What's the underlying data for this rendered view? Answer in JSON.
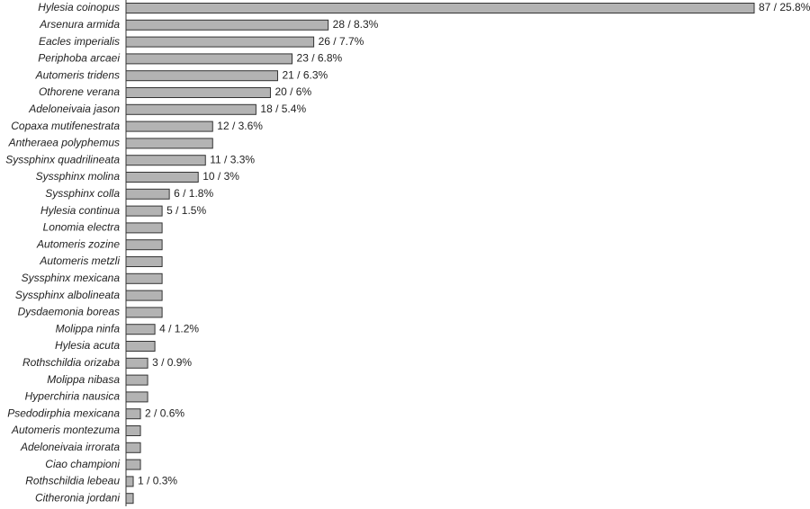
{
  "chart_data": {
    "type": "bar",
    "orientation": "horizontal",
    "color": "#b3b3b3",
    "categories": [
      "Hylesia coinopus",
      "Arsenura armida",
      "Eacles imperialis",
      "Periphoba arcaei",
      "Automeris tridens",
      "Othorene verana",
      "Adeloneivaia jason",
      "Copaxa mutifenestrata",
      "Antheraea polyphemus",
      "Syssphinx quadrilineata",
      "Syssphinx molina",
      "Syssphinx colla",
      "Hylesia continua",
      "Lonomia electra",
      "Automeris zozine",
      "Automeris metzli",
      "Syssphinx mexicana",
      "Syssphinx albolineata",
      "Dysdaemonia boreas",
      "Molippa ninfa",
      "Hylesia acuta",
      "Rothschildia orizaba",
      "Molippa nibasa",
      "Hyperchiria nausica",
      "Psedodirphia mexicana",
      "Automeris montezuma",
      "Adeloneivaia irrorata",
      "Ciao championi",
      "Rothschildia lebeau",
      "Citheronia jordani"
    ],
    "values": [
      87,
      28,
      26,
      23,
      21,
      20,
      18,
      12,
      12,
      11,
      10,
      6,
      5,
      5,
      5,
      5,
      5,
      5,
      5,
      4,
      4,
      3,
      3,
      3,
      2,
      2,
      2,
      2,
      1,
      1
    ],
    "value_labels": [
      "87 / 25.8%",
      "28 / 8.3%",
      "26 / 7.7%",
      "23 / 6.8%",
      "21 / 6.3%",
      "20 / 6%",
      "18 / 5.4%",
      "12 / 3.6%",
      null,
      "11 / 3.3%",
      "10 / 3%",
      "6 / 1.8%",
      "5 / 1.5%",
      null,
      null,
      null,
      null,
      null,
      null,
      "4 / 1.2%",
      null,
      "3 / 0.9%",
      null,
      null,
      "2 / 0.6%",
      null,
      null,
      null,
      "1 / 0.3%",
      null
    ]
  }
}
